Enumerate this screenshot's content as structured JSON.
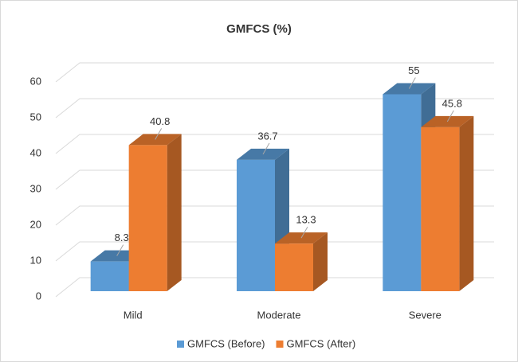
{
  "chart_data": {
    "type": "bar3d",
    "title": "GMFCS (%)",
    "categories": [
      "Mild",
      "Moderate",
      "Severe"
    ],
    "series": [
      {
        "name": "GMFCS (Before)",
        "color": "#5b9bd5",
        "values": [
          8.3,
          36.7,
          55
        ]
      },
      {
        "name": "GMFCS (After)",
        "color": "#ed7d31",
        "values": [
          40.8,
          13.3,
          45.8
        ]
      }
    ],
    "ylim": [
      0,
      60
    ],
    "yticks": [
      0,
      10,
      20,
      30,
      40,
      50,
      60
    ],
    "grid": true,
    "legend": "bottom"
  }
}
